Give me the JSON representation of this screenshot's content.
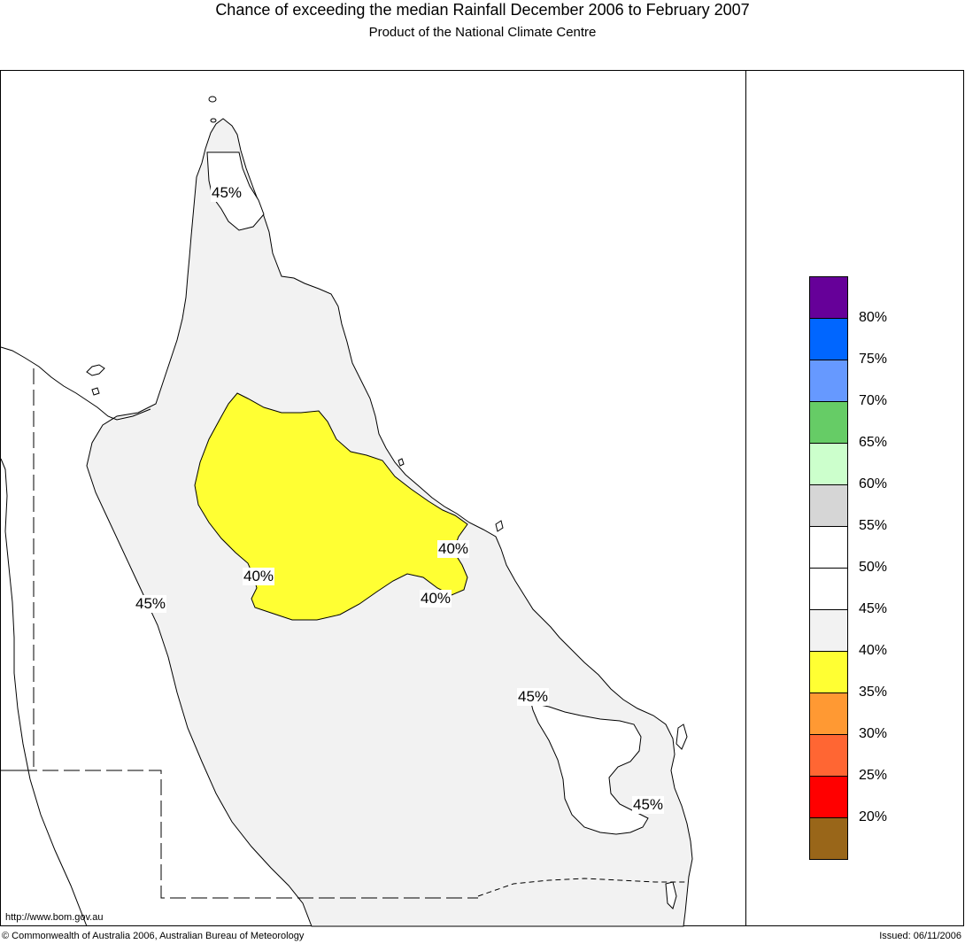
{
  "header": {
    "title": "Chance of exceeding the median Rainfall December 2006 to February 2007",
    "subtitle": "Product of the National Climate Centre"
  },
  "map": {
    "contour_labels": [
      "45%",
      "40%",
      "40%",
      "40%",
      "45%",
      "45%",
      "45%"
    ],
    "colors": {
      "region_40_45": "#f2f2f2",
      "region_35_40": "#ffff33",
      "region_45_55": "#ffffff",
      "outline": "#000000"
    }
  },
  "legend": {
    "swatches": [
      {
        "color": "#660099"
      },
      {
        "color": "#0066ff"
      },
      {
        "color": "#6699ff"
      },
      {
        "color": "#66cc66"
      },
      {
        "color": "#ccffcc"
      },
      {
        "color": "#d6d6d6"
      },
      {
        "color": "#ffffff"
      },
      {
        "color": "#ffffff"
      },
      {
        "color": "#f2f2f2"
      },
      {
        "color": "#ffff33"
      },
      {
        "color": "#ff9933"
      },
      {
        "color": "#ff6633"
      },
      {
        "color": "#ff0000"
      },
      {
        "color": "#996619"
      }
    ],
    "labels": [
      "80%",
      "75%",
      "70%",
      "65%",
      "60%",
      "55%",
      "50%",
      "45%",
      "40%",
      "35%",
      "30%",
      "25%",
      "20%"
    ]
  },
  "footer": {
    "url": "http://www.bom.gov.au",
    "copyright": "© Commonwealth of Australia 2006, Australian Bureau of Meteorology",
    "issued": "Issued: 06/11/2006"
  }
}
